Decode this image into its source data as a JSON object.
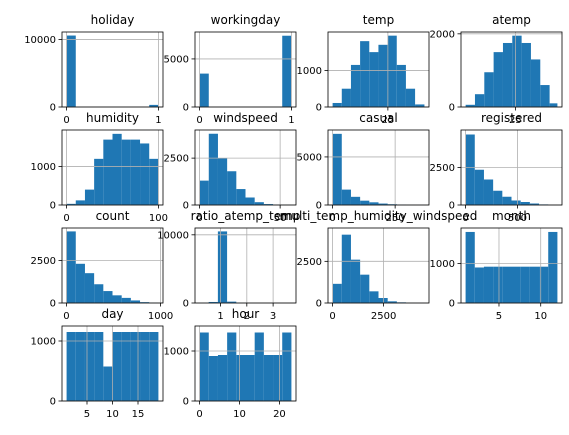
{
  "chart_data": [
    {
      "type": "bar",
      "title": "holiday",
      "bin_edges": [
        0,
        0.1,
        0.2,
        0.3,
        0.4,
        0.5,
        0.6,
        0.7,
        0.8,
        0.9,
        1.0
      ],
      "counts": [
        10575,
        0,
        0,
        0,
        0,
        0,
        0,
        0,
        0,
        311
      ],
      "xlim": [
        -0.05,
        1.05
      ],
      "ylim": [
        0,
        11100
      ],
      "xticks": [
        0,
        1
      ],
      "xtick_labels": [
        "0",
        "1"
      ],
      "yticks": [
        0,
        10000
      ],
      "ytick_labels": [
        "0",
        "10000"
      ],
      "grid": true
    },
    {
      "type": "bar",
      "title": "workingday",
      "bin_edges": [
        0,
        0.1,
        0.2,
        0.3,
        0.4,
        0.5,
        0.6,
        0.7,
        0.8,
        0.9,
        1.0
      ],
      "counts": [
        3474,
        0,
        0,
        0,
        0,
        0,
        0,
        0,
        0,
        7412
      ],
      "xlim": [
        -0.05,
        1.05
      ],
      "ylim": [
        0,
        7800
      ],
      "xticks": [
        0,
        1
      ],
      "xtick_labels": [
        "0",
        "1"
      ],
      "yticks": [
        0,
        5000
      ],
      "ytick_labels": [
        "0",
        "5000"
      ],
      "grid": true
    },
    {
      "type": "bar",
      "title": "temp",
      "bin_edges": [
        0.82,
        4.83,
        8.84,
        12.85,
        16.86,
        20.87,
        24.88,
        28.89,
        32.9,
        36.91,
        41.0
      ],
      "counts": [
        110,
        500,
        1150,
        1800,
        1500,
        1700,
        1950,
        1150,
        500,
        70
      ],
      "xlim": [
        -1.2,
        43.0
      ],
      "ylim": [
        0,
        2050
      ],
      "xticks": [
        25
      ],
      "xtick_labels": [
        "25"
      ],
      "yticks": [
        0,
        1000
      ],
      "ytick_labels": [
        "0",
        "1000"
      ],
      "grid": true
    },
    {
      "type": "bar",
      "title": "atemp",
      "bin_edges": [
        0.76,
        5.3,
        9.85,
        14.39,
        18.94,
        23.48,
        28.03,
        32.57,
        37.12,
        41.66,
        45.46
      ],
      "counts": [
        60,
        350,
        950,
        1500,
        1750,
        1950,
        1750,
        1300,
        600,
        100
      ],
      "xlim": [
        -1.5,
        47.7
      ],
      "ylim": [
        0,
        2050
      ],
      "xticks": [
        25
      ],
      "xtick_labels": [
        "25"
      ],
      "yticks": [
        0,
        2000
      ],
      "ytick_labels": [
        "0",
        "2000"
      ],
      "grid": true
    },
    {
      "type": "bar",
      "title": "humidity",
      "bin_edges": [
        0,
        10,
        20,
        30,
        40,
        50,
        60,
        70,
        80,
        90,
        100
      ],
      "counts": [
        30,
        120,
        400,
        1200,
        1700,
        1850,
        1700,
        1700,
        1600,
        1200
      ],
      "xlim": [
        -5,
        105
      ],
      "ylim": [
        0,
        1950
      ],
      "xticks": [
        0,
        100
      ],
      "xtick_labels": [
        "0",
        "100"
      ],
      "yticks": [
        0,
        1000
      ],
      "ytick_labels": [
        "0",
        "1000"
      ],
      "grid": true
    },
    {
      "type": "bar",
      "title": "windspeed",
      "bin_edges": [
        0,
        5.7,
        11.4,
        17.1,
        22.8,
        28.5,
        34.2,
        39.9,
        45.6,
        51.3,
        57.0
      ],
      "counts": [
        1300,
        3800,
        2500,
        1800,
        850,
        400,
        150,
        50,
        20,
        10
      ],
      "xlim": [
        -2.85,
        59.85
      ],
      "ylim": [
        0,
        4000
      ],
      "xticks": [
        0,
        50
      ],
      "xtick_labels": [
        "0",
        "50"
      ],
      "yticks": [
        0,
        2500
      ],
      "ytick_labels": [
        "0",
        "2500"
      ],
      "grid": true
    },
    {
      "type": "bar",
      "title": "casual",
      "bin_edges": [
        0,
        36.7,
        73.4,
        110.1,
        146.8,
        183.5,
        220.2,
        256.9,
        293.6,
        330.3,
        367
      ],
      "counts": [
        7400,
        1600,
        850,
        450,
        280,
        150,
        80,
        40,
        20,
        10
      ],
      "xlim": [
        -18.35,
        385.35
      ],
      "ylim": [
        0,
        7800
      ],
      "xticks": [
        0,
        250
      ],
      "xtick_labels": [
        "0",
        "250"
      ],
      "yticks": [
        0,
        5000
      ],
      "ytick_labels": [
        "0",
        "5000"
      ],
      "grid": true
    },
    {
      "type": "bar",
      "title": "registered",
      "bin_edges": [
        0,
        88.6,
        177.2,
        265.8,
        354.4,
        443,
        531.6,
        620.2,
        708.8,
        797.4,
        886
      ],
      "counts": [
        4700,
        2350,
        1700,
        950,
        550,
        300,
        200,
        100,
        40,
        10
      ],
      "xlim": [
        -44.3,
        930.3
      ],
      "ylim": [
        0,
        5000
      ],
      "xticks": [
        0,
        500
      ],
      "xtick_labels": [
        "0",
        "500"
      ],
      "yticks": [
        0,
        2500
      ],
      "ytick_labels": [
        "0",
        "2500"
      ],
      "grid": true
    },
    {
      "type": "bar",
      "title": "count",
      "bin_edges": [
        1,
        98.6,
        196.2,
        293.8,
        391.4,
        489,
        586.6,
        684.2,
        781.8,
        879.4,
        977
      ],
      "counts": [
        4200,
        2300,
        1750,
        1100,
        700,
        450,
        300,
        150,
        50,
        20
      ],
      "xlim": [
        -47.8,
        1025.8
      ],
      "ylim": [
        0,
        4400
      ],
      "xticks": [
        0,
        1000
      ],
      "xtick_labels": [
        "0",
        "1000"
      ],
      "yticks": [
        0,
        2500
      ],
      "ytick_labels": [
        "0",
        "2500"
      ],
      "grid": true
    },
    {
      "type": "bar",
      "title": "ratio_atemp_temp",
      "bin_edges": [
        0.2,
        0.55,
        0.9,
        1.25,
        1.6,
        1.95,
        2.3,
        2.65,
        3.0,
        3.35,
        3.7
      ],
      "counts": [
        10,
        150,
        10500,
        200,
        10,
        5,
        5,
        5,
        5,
        5
      ],
      "xlim": [
        0.03,
        3.87
      ],
      "ylim": [
        0,
        11000
      ],
      "xticks": [
        1,
        2,
        3
      ],
      "xtick_labels": [
        "1",
        "2",
        "3"
      ],
      "yticks": [
        0,
        10000
      ],
      "ytick_labels": [
        "0",
        "10000"
      ],
      "grid": true
    },
    {
      "type": "bar",
      "title": "multi_temp_humidity_windspeed",
      "bin_edges": [
        0,
        450,
        900,
        1350,
        1800,
        2250,
        2700,
        3150,
        3600,
        4050,
        4500
      ],
      "counts": [
        1150,
        4100,
        2600,
        1700,
        700,
        300,
        100,
        40,
        10,
        5
      ],
      "xlim": [
        -225,
        4725
      ],
      "ylim": [
        0,
        4500
      ],
      "xticks": [
        0,
        2500
      ],
      "xtick_labels": [
        "0",
        "2500"
      ],
      "yticks": [
        0,
        2500
      ],
      "ytick_labels": [
        "0",
        "2500"
      ],
      "grid": true
    },
    {
      "type": "bar",
      "title": "month",
      "bin_edges": [
        1,
        2.1,
        3.2,
        4.3,
        5.4,
        6.5,
        7.6,
        8.7,
        9.8,
        10.9,
        12
      ],
      "counts": [
        1800,
        900,
        920,
        920,
        920,
        920,
        920,
        920,
        920,
        1800
      ],
      "xlim": [
        0.45,
        12.55
      ],
      "ylim": [
        0,
        1900
      ],
      "xticks": [
        5,
        10
      ],
      "xtick_labels": [
        "5",
        "10"
      ],
      "yticks": [
        0,
        1000
      ],
      "ytick_labels": [
        "0",
        "1000"
      ],
      "grid": true
    },
    {
      "type": "bar",
      "title": "day",
      "bin_edges": [
        1,
        2.8,
        4.6,
        6.4,
        8.2,
        10,
        11.8,
        13.6,
        15.4,
        17.2,
        19
      ],
      "counts": [
        1150,
        1150,
        1150,
        1150,
        575,
        1150,
        1150,
        1150,
        1150,
        1150
      ],
      "xlim": [
        0.1,
        19.9
      ],
      "ylim": [
        0,
        1250
      ],
      "xticks": [
        5,
        10,
        15
      ],
      "xtick_labels": [
        "5",
        "10",
        "15"
      ],
      "yticks": [
        0,
        1000
      ],
      "ytick_labels": [
        "0",
        "1000"
      ],
      "grid": true
    },
    {
      "type": "bar",
      "title": "hour",
      "bin_edges": [
        0,
        2.3,
        4.6,
        6.9,
        9.2,
        11.5,
        13.8,
        16.1,
        18.4,
        20.7,
        23
      ],
      "counts": [
        1370,
        900,
        920,
        1370,
        920,
        920,
        1370,
        920,
        920,
        1370
      ],
      "xlim": [
        -1.15,
        24.15
      ],
      "ylim": [
        0,
        1500
      ],
      "xticks": [
        0,
        10,
        20
      ],
      "xtick_labels": [
        "0",
        "10",
        "20"
      ],
      "yticks": [
        0,
        1000
      ],
      "ytick_labels": [
        "0",
        "1000"
      ],
      "grid": true
    }
  ],
  "colors": {
    "bar": "#1f77b4",
    "grid": "#b0b0b0"
  }
}
